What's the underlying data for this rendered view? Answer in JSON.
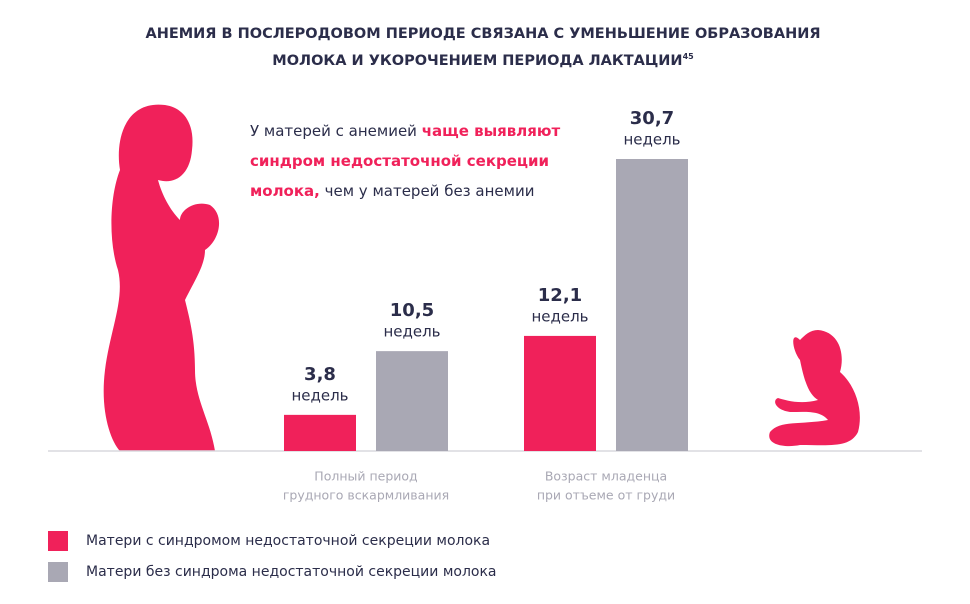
{
  "chart_data": {
    "type": "bar",
    "title_lines": [
      "АНЕМИЯ В ПОСЛЕРОДОВОМ ПЕРИОДЕ СВЯЗАНА С УМЕНЬШЕНИЕ ОБРАЗОВАНИЯ",
      "МОЛОКА И УКОРОЧЕНИЕМ ПЕРИОДА ЛАКТАЦИИ"
    ],
    "title_ref": "45",
    "annotation": [
      "У матерей с анемией ",
      "чаще выявляют синдром недостаточной секреции молока,",
      " чем у матерей без анемии"
    ],
    "categories": [
      [
        "Полный период",
        "грудного вскармливания"
      ],
      [
        "Возраст младенца",
        "при отъеме от груди"
      ]
    ],
    "unit_label": "недель",
    "series": [
      {
        "name": "Матери с синдромом недостаточной секреции молока",
        "color": "#f0215a",
        "values": [
          3.8,
          12.1
        ],
        "value_labels": [
          "3,8",
          "12,1"
        ]
      },
      {
        "name": "Матери без синдрома недостаточной секреции молока",
        "color": "#a9a8b4",
        "values": [
          10.5,
          30.7
        ],
        "value_labels": [
          "10,5",
          "30,7"
        ]
      }
    ]
  }
}
